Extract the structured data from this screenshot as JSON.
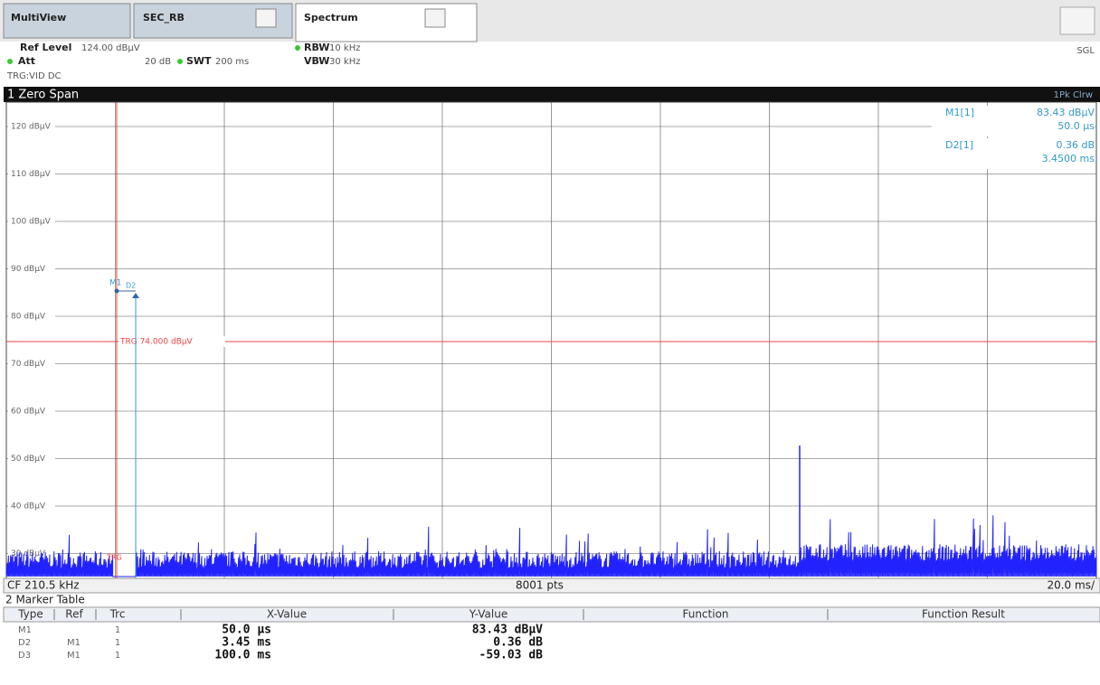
{
  "tabs": [
    "MultiView",
    "SEC_RB",
    "Spectrum"
  ],
  "header": {
    "ref_level_label": "Ref Level",
    "ref_level": "124.00 dBµV",
    "att_label": "Att",
    "att": "20 dB",
    "swt_label": "SWT",
    "swt": "200 ms",
    "rbw_label": "RBW",
    "rbw": "10 kHz",
    "vbw_label": "VBW",
    "vbw": "30 kHz",
    "trigger": "TRG:VID DC",
    "mode": "SGL"
  },
  "plot": {
    "title": "1 Zero Span",
    "trace_label": "1Pk Clrw",
    "y_labels": [
      "120 dBµV",
      "110 dBµV",
      "100 dBµV",
      "90 dBµV",
      "80 dBµV",
      "70 dBµV",
      "60 dBµV",
      "50 dBµV",
      "40 dBµV",
      "30 dBµV"
    ],
    "marker_readout": [
      {
        "name": "M1[1]",
        "value": "83.43 dBµV",
        "position": "50.0 µs"
      },
      {
        "name": "D2[1]",
        "value": "0.36 dB",
        "position": "3.4500 ms"
      }
    ],
    "trigger_line": "TRG  74.000 dBµV",
    "trigger_mark": "TRG",
    "marker_1": "M1",
    "marker_2": "D2",
    "center": "CF 210.5 kHz",
    "points": "8001 pts",
    "scale": "20.0 ms/"
  },
  "marker_table": {
    "title": "2 Marker Table",
    "columns": [
      "Type",
      "Ref",
      "Trc",
      "X-Value",
      "Y-Value",
      "Function",
      "Function Result"
    ],
    "rows": [
      {
        "type": "M1",
        "trc": "1",
        "x": "50.0 µs",
        "y": "83.43 dBµV"
      },
      {
        "type": "D2",
        "ref": "M1",
        "trc": "1",
        "x": "3.45 ms",
        "y": "0.36 dB"
      },
      {
        "type": "D3",
        "ref": "M1",
        "trc": "1",
        "x": "100.0 ms",
        "y": "-59.03 dB"
      }
    ]
  }
}
